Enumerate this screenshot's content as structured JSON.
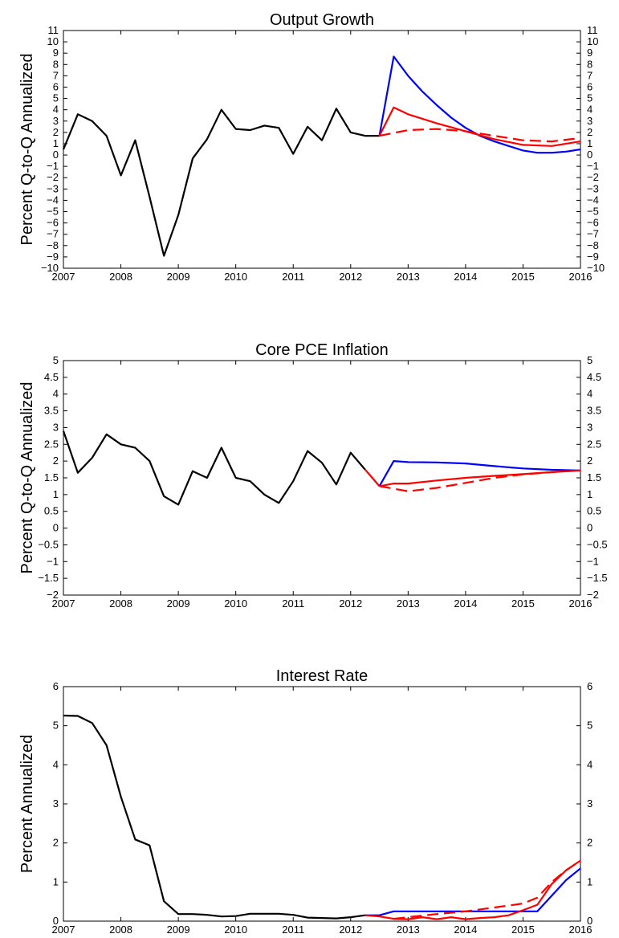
{
  "chart_data": [
    {
      "type": "line",
      "title": "Output Growth",
      "xlabel": "",
      "ylabel": "Percent Q-to-Q Annualized",
      "xlim": [
        2007,
        2016
      ],
      "ylim": [
        -10,
        11
      ],
      "xticks": [
        2007,
        2008,
        2009,
        2010,
        2011,
        2012,
        2013,
        2014,
        2015,
        2016
      ],
      "yticks": [
        -10,
        -9,
        -8,
        -7,
        -6,
        -5,
        -4,
        -3,
        -2,
        -1,
        0,
        1,
        2,
        3,
        4,
        5,
        6,
        7,
        8,
        9,
        10,
        11
      ],
      "ytick_labels": [
        "−10",
        "−9",
        "−8",
        "−7",
        "−6",
        "−5",
        "−4",
        "−3",
        "−2",
        "−1",
        "0",
        "1",
        "2",
        "3",
        "4",
        "5",
        "6",
        "7",
        "8",
        "9",
        "10",
        "11"
      ],
      "grid": false,
      "series": [
        {
          "color": "#000000",
          "dash": "solid",
          "x": [
            2007.0,
            2007.25,
            2007.5,
            2007.75,
            2008.0,
            2008.25,
            2008.5,
            2008.75,
            2009.0,
            2009.25,
            2009.5,
            2009.75,
            2010.0,
            2010.25,
            2010.5,
            2010.75,
            2011.0,
            2011.25,
            2011.5,
            2011.75,
            2012.0,
            2012.25,
            2012.5
          ],
          "y": [
            0.5,
            3.6,
            3.0,
            1.7,
            -1.8,
            1.3,
            -3.7,
            -8.9,
            -5.3,
            -0.3,
            1.4,
            4.0,
            2.3,
            2.2,
            2.6,
            2.4,
            0.1,
            2.5,
            1.3,
            4.1,
            2.0,
            1.7,
            1.7
          ]
        },
        {
          "color": "#0000ff",
          "dash": "solid",
          "x": [
            2012.5,
            2012.75,
            2013.0,
            2013.25,
            2013.5,
            2013.75,
            2014.0,
            2014.25,
            2014.5,
            2014.75,
            2015.0,
            2015.25,
            2015.5,
            2015.75,
            2016.0
          ],
          "y": [
            1.7,
            8.7,
            7.0,
            5.6,
            4.4,
            3.3,
            2.4,
            1.7,
            1.2,
            0.8,
            0.4,
            0.2,
            0.2,
            0.3,
            0.5
          ]
        },
        {
          "color": "#ff0000",
          "dash": "solid",
          "x": [
            2012.5,
            2012.75,
            2013.0,
            2013.5,
            2014.0,
            2014.5,
            2015.0,
            2015.5,
            2016.0
          ],
          "y": [
            1.7,
            4.2,
            3.6,
            2.8,
            2.1,
            1.4,
            0.9,
            0.8,
            1.2
          ]
        },
        {
          "color": "#ff0000",
          "dash": "dashed",
          "x": [
            2012.5,
            2013.0,
            2013.5,
            2014.0,
            2014.5,
            2015.0,
            2015.5,
            2016.0
          ],
          "y": [
            1.7,
            2.2,
            2.3,
            2.1,
            1.7,
            1.3,
            1.2,
            1.5
          ]
        }
      ]
    },
    {
      "type": "line",
      "title": "Core PCE Inflation",
      "xlabel": "",
      "ylabel": "Percent Q-to-Q Annualized",
      "xlim": [
        2007,
        2016
      ],
      "ylim": [
        -2,
        5
      ],
      "xticks": [
        2007,
        2008,
        2009,
        2010,
        2011,
        2012,
        2013,
        2014,
        2015,
        2016
      ],
      "yticks": [
        -2,
        -1.5,
        -1,
        -0.5,
        0,
        0.5,
        1,
        1.5,
        2,
        2.5,
        3,
        3.5,
        4,
        4.5,
        5
      ],
      "ytick_labels": [
        "−2",
        "−1.5",
        "−1",
        "−0.5",
        "0",
        "0.5",
        "1",
        "1.5",
        "2",
        "2.5",
        "3",
        "3.5",
        "4",
        "4.5",
        "5"
      ],
      "grid": false,
      "series": [
        {
          "color": "#000000",
          "dash": "solid",
          "x": [
            2007.0,
            2007.25,
            2007.5,
            2007.75,
            2008.0,
            2008.25,
            2008.5,
            2008.75,
            2009.0,
            2009.25,
            2009.5,
            2009.75,
            2010.0,
            2010.25,
            2010.5,
            2010.75,
            2011.0,
            2011.25,
            2011.5,
            2011.75,
            2012.0,
            2012.25
          ],
          "y": [
            2.9,
            1.65,
            2.1,
            2.8,
            2.5,
            2.4,
            2.0,
            0.95,
            0.7,
            1.7,
            1.5,
            2.4,
            1.5,
            1.4,
            1.0,
            0.75,
            1.4,
            2.3,
            1.95,
            1.3,
            2.25,
            1.75
          ]
        },
        {
          "color": "#ff0000",
          "dash": "solid",
          "x": [
            2012.25,
            2012.5
          ],
          "y": [
            1.75,
            1.25
          ]
        },
        {
          "color": "#0000ff",
          "dash": "solid",
          "x": [
            2012.5,
            2012.75,
            2013.0,
            2013.5,
            2014.0,
            2014.5,
            2015.0,
            2015.5,
            2016.0
          ],
          "y": [
            1.25,
            2.0,
            1.97,
            1.96,
            1.93,
            1.85,
            1.78,
            1.74,
            1.72
          ]
        },
        {
          "color": "#ff0000",
          "dash": "solid",
          "x": [
            2012.5,
            2012.75,
            2013.0,
            2013.5,
            2014.0,
            2014.5,
            2015.0,
            2015.5,
            2016.0
          ],
          "y": [
            1.25,
            1.33,
            1.33,
            1.42,
            1.5,
            1.56,
            1.61,
            1.67,
            1.72
          ]
        },
        {
          "color": "#ff0000",
          "dash": "dashed",
          "x": [
            2012.5,
            2013.0,
            2013.5,
            2014.0,
            2014.5,
            2015.0,
            2015.5,
            2016.0
          ],
          "y": [
            1.25,
            1.1,
            1.2,
            1.35,
            1.5,
            1.6,
            1.67,
            1.72
          ]
        }
      ]
    },
    {
      "type": "line",
      "title": "Interest Rate",
      "xlabel": "",
      "ylabel": "Percent Annualized",
      "xlim": [
        2007,
        2016
      ],
      "ylim": [
        0,
        6
      ],
      "xticks": [
        2007,
        2008,
        2009,
        2010,
        2011,
        2012,
        2013,
        2014,
        2015,
        2016
      ],
      "yticks": [
        0,
        1,
        2,
        3,
        4,
        5,
        6
      ],
      "ytick_labels": [
        "0",
        "1",
        "2",
        "3",
        "4",
        "5",
        "6"
      ],
      "grid": false,
      "series": [
        {
          "color": "#000000",
          "dash": "solid",
          "x": [
            2007.0,
            2007.25,
            2007.5,
            2007.75,
            2008.0,
            2008.25,
            2008.5,
            2008.75,
            2009.0,
            2009.25,
            2009.5,
            2009.75,
            2010.0,
            2010.25,
            2010.5,
            2010.75,
            2011.0,
            2011.25,
            2011.5,
            2011.75,
            2012.0,
            2012.25
          ],
          "y": [
            5.26,
            5.25,
            5.07,
            4.5,
            3.18,
            2.09,
            1.94,
            0.51,
            0.18,
            0.18,
            0.16,
            0.12,
            0.13,
            0.19,
            0.19,
            0.19,
            0.16,
            0.09,
            0.08,
            0.07,
            0.1,
            0.15
          ]
        },
        {
          "color": "#0000ff",
          "dash": "solid",
          "x": [
            2012.25,
            2012.5,
            2012.75,
            2013.0,
            2013.5,
            2014.0,
            2014.5,
            2015.0,
            2015.25,
            2015.5,
            2015.75,
            2016.0
          ],
          "y": [
            0.15,
            0.15,
            0.25,
            0.25,
            0.25,
            0.25,
            0.25,
            0.25,
            0.25,
            0.65,
            1.05,
            1.35
          ]
        },
        {
          "color": "#ff0000",
          "dash": "solid",
          "x": [
            2012.25,
            2012.5,
            2012.75,
            2013.0,
            2013.25,
            2013.5,
            2013.75,
            2014.0,
            2014.25,
            2014.5,
            2014.75,
            2015.0,
            2015.25,
            2015.5,
            2015.75,
            2016.0
          ],
          "y": [
            0.15,
            0.12,
            0.06,
            0.05,
            0.1,
            0.05,
            0.1,
            0.05,
            0.08,
            0.1,
            0.15,
            0.28,
            0.42,
            0.95,
            1.3,
            1.55
          ]
        },
        {
          "color": "#ff0000",
          "dash": "dashed",
          "x": [
            2012.75,
            2013.0,
            2013.5,
            2014.0,
            2014.5,
            2015.0,
            2015.25,
            2015.5,
            2015.75,
            2016.0
          ],
          "y": [
            0.06,
            0.1,
            0.18,
            0.25,
            0.35,
            0.45,
            0.6,
            1.0,
            1.3,
            1.55
          ]
        }
      ]
    }
  ]
}
